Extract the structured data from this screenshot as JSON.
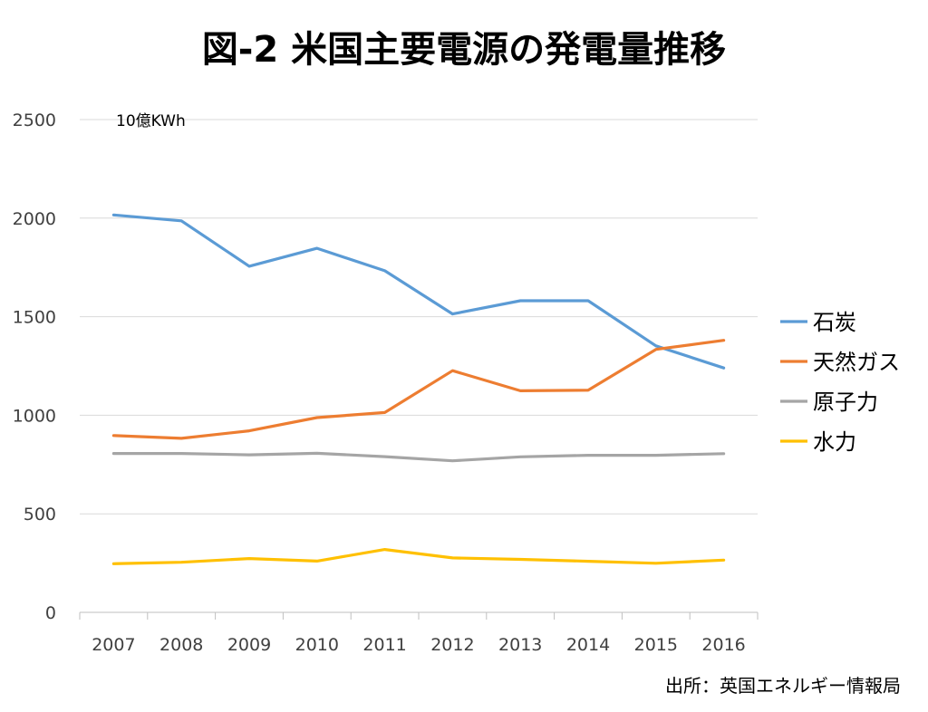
{
  "chart_data": {
    "type": "line",
    "title": "図-2 米国主要電源の発電量推移",
    "unit_label": "10億KWh",
    "source": "出所：英国エネルギー情報局",
    "x": [
      "2007",
      "2008",
      "2009",
      "2010",
      "2011",
      "2012",
      "2013",
      "2014",
      "2015",
      "2016"
    ],
    "ylim": [
      0,
      2500
    ],
    "yticks": [
      0,
      500,
      1000,
      1500,
      2000,
      2500
    ],
    "grid": true,
    "legend_position": "right",
    "series": [
      {
        "name": "石炭",
        "color": "#5B9BD5",
        "values": [
          2016,
          1986,
          1756,
          1847,
          1733,
          1514,
          1581,
          1581,
          1352,
          1240
        ]
      },
      {
        "name": "天然ガス",
        "color": "#ED7D31",
        "values": [
          897,
          883,
          921,
          988,
          1014,
          1226,
          1124,
          1127,
          1334,
          1380
        ]
      },
      {
        "name": "原子力",
        "color": "#A5A5A5",
        "values": [
          806,
          806,
          799,
          807,
          790,
          769,
          789,
          797,
          797,
          805
        ]
      },
      {
        "name": "水力",
        "color": "#FFC000",
        "values": [
          247,
          254,
          273,
          260,
          319,
          276,
          269,
          259,
          249,
          265
        ]
      }
    ]
  }
}
